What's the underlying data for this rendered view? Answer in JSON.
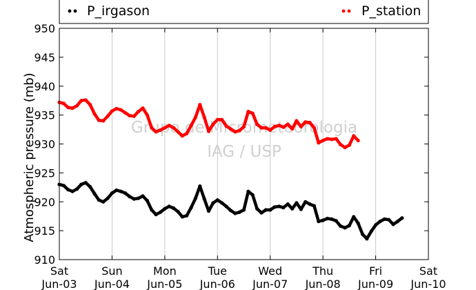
{
  "chart_data": {
    "type": "scatter",
    "ylabel": "Atmospheric pressure (mb)",
    "ylim": [
      910,
      950
    ],
    "yticks": [
      910,
      915,
      920,
      925,
      930,
      935,
      940,
      945,
      950
    ],
    "xlim": [
      "2013-06-03T00:00",
      "2013-06-10T00:00"
    ],
    "xticks": [
      {
        "date": "2013-06-03T00:00",
        "label1": "Sat",
        "label2": "Jun-03"
      },
      {
        "date": "2013-06-04T00:00",
        "label1": "Sun",
        "label2": "Jun-04"
      },
      {
        "date": "2013-06-05T00:00",
        "label1": "Mon",
        "label2": "Jun-05"
      },
      {
        "date": "2013-06-06T00:00",
        "label1": "Tue",
        "label2": "Jun-06"
      },
      {
        "date": "2013-06-07T00:00",
        "label1": "Wed",
        "label2": "Jun-07"
      },
      {
        "date": "2013-06-08T00:00",
        "label1": "Thu",
        "label2": "Jun-08"
      },
      {
        "date": "2013-06-09T00:00",
        "label1": "Fri",
        "label2": "Jun-09"
      },
      {
        "date": "2013-06-10T00:00",
        "label1": "Sat",
        "label2": "Jun-10"
      }
    ],
    "grid": "vertical",
    "legend": "top",
    "watermark": [
      "Grupo de Micrometeorologia",
      "IAG / USP"
    ],
    "series": [
      {
        "name": "P_irgason",
        "color": "#000000",
        "points": [
          [
            "2013-06-03T00:00",
            923.0
          ],
          [
            "2013-06-03T02:00",
            922.8
          ],
          [
            "2013-06-03T04:00",
            922.1
          ],
          [
            "2013-06-03T06:00",
            921.8
          ],
          [
            "2013-06-03T08:00",
            922.2
          ],
          [
            "2013-06-03T10:00",
            923.0
          ],
          [
            "2013-06-03T12:00",
            923.3
          ],
          [
            "2013-06-03T14:00",
            922.6
          ],
          [
            "2013-06-03T16:00",
            921.4
          ],
          [
            "2013-06-03T18:00",
            920.3
          ],
          [
            "2013-06-03T20:00",
            920.0
          ],
          [
            "2013-06-03T22:00",
            920.6
          ],
          [
            "2013-06-04T00:00",
            921.5
          ],
          [
            "2013-06-04T02:00",
            922.0
          ],
          [
            "2013-06-04T04:00",
            921.8
          ],
          [
            "2013-06-04T06:00",
            921.5
          ],
          [
            "2013-06-04T08:00",
            920.9
          ],
          [
            "2013-06-04T10:00",
            920.5
          ],
          [
            "2013-06-04T12:00",
            920.6
          ],
          [
            "2013-06-04T14:00",
            921.0
          ],
          [
            "2013-06-04T16:00",
            920.2
          ],
          [
            "2013-06-04T18:00",
            918.6
          ],
          [
            "2013-06-04T20:00",
            917.8
          ],
          [
            "2013-06-04T22:00",
            918.2
          ],
          [
            "2013-06-05T00:00",
            918.8
          ],
          [
            "2013-06-05T02:00",
            919.2
          ],
          [
            "2013-06-05T04:00",
            918.9
          ],
          [
            "2013-06-05T06:00",
            918.3
          ],
          [
            "2013-06-05T08:00",
            917.4
          ],
          [
            "2013-06-05T10:00",
            917.6
          ],
          [
            "2013-06-05T12:00",
            919.0
          ],
          [
            "2013-06-05T14:00",
            920.6
          ],
          [
            "2013-06-05T16:00",
            922.7
          ],
          [
            "2013-06-05T18:00",
            920.5
          ],
          [
            "2013-06-05T20:00",
            918.4
          ],
          [
            "2013-06-05T22:00",
            919.8
          ],
          [
            "2013-06-06T00:00",
            920.3
          ],
          [
            "2013-06-06T02:00",
            919.8
          ],
          [
            "2013-06-06T04:00",
            919.2
          ],
          [
            "2013-06-06T06:00",
            918.5
          ],
          [
            "2013-06-06T08:00",
            918.0
          ],
          [
            "2013-06-06T10:00",
            918.2
          ],
          [
            "2013-06-06T12:00",
            918.6
          ],
          [
            "2013-06-06T14:00",
            921.8
          ],
          [
            "2013-06-06T16:00",
            921.2
          ],
          [
            "2013-06-06T18:00",
            918.8
          ],
          [
            "2013-06-06T20:00",
            918.1
          ],
          [
            "2013-06-06T22:00",
            918.6
          ],
          [
            "2013-06-07T00:00",
            918.6
          ],
          [
            "2013-06-07T02:00",
            919.1
          ],
          [
            "2013-06-07T04:00",
            919.2
          ],
          [
            "2013-06-07T06:00",
            919.0
          ],
          [
            "2013-06-07T08:00",
            919.6
          ],
          [
            "2013-06-07T10:00",
            918.8
          ],
          [
            "2013-06-07T12:00",
            919.8
          ],
          [
            "2013-06-07T14:00",
            918.7
          ],
          [
            "2013-06-07T16:00",
            920.0
          ],
          [
            "2013-06-07T18:00",
            919.6
          ],
          [
            "2013-06-07T20:00",
            919.3
          ],
          [
            "2013-06-07T22:00",
            916.6
          ],
          [
            "2013-06-08T00:00",
            916.8
          ],
          [
            "2013-06-08T02:00",
            917.1
          ],
          [
            "2013-06-08T04:00",
            917.0
          ],
          [
            "2013-06-08T06:00",
            916.7
          ],
          [
            "2013-06-08T08:00",
            915.8
          ],
          [
            "2013-06-08T10:00",
            915.5
          ],
          [
            "2013-06-08T12:00",
            915.9
          ],
          [
            "2013-06-08T14:00",
            917.4
          ],
          [
            "2013-06-08T16:00",
            916.3
          ],
          [
            "2013-06-08T18:00",
            914.4
          ],
          [
            "2013-06-08T20:00",
            913.6
          ],
          [
            "2013-06-08T22:00",
            914.9
          ],
          [
            "2013-06-09T00:00",
            916.0
          ],
          [
            "2013-06-09T02:00",
            916.6
          ],
          [
            "2013-06-09T04:00",
            917.0
          ],
          [
            "2013-06-09T06:00",
            916.9
          ],
          [
            "2013-06-09T08:00",
            916.1
          ],
          [
            "2013-06-09T10:00",
            916.6
          ],
          [
            "2013-06-09T12:00",
            917.2
          ]
        ]
      },
      {
        "name": "P_station",
        "color": "#ff0000",
        "points": [
          [
            "2013-06-03T00:00",
            937.2
          ],
          [
            "2013-06-03T02:00",
            937.0
          ],
          [
            "2013-06-03T04:00",
            936.3
          ],
          [
            "2013-06-03T06:00",
            936.2
          ],
          [
            "2013-06-03T08:00",
            936.6
          ],
          [
            "2013-06-03T10:00",
            937.5
          ],
          [
            "2013-06-03T12:00",
            937.6
          ],
          [
            "2013-06-03T14:00",
            936.8
          ],
          [
            "2013-06-03T16:00",
            935.2
          ],
          [
            "2013-06-03T18:00",
            934.1
          ],
          [
            "2013-06-03T20:00",
            934.0
          ],
          [
            "2013-06-03T22:00",
            934.8
          ],
          [
            "2013-06-04T00:00",
            935.7
          ],
          [
            "2013-06-04T02:00",
            936.1
          ],
          [
            "2013-06-04T04:00",
            935.9
          ],
          [
            "2013-06-04T06:00",
            935.4
          ],
          [
            "2013-06-04T08:00",
            934.9
          ],
          [
            "2013-06-04T10:00",
            934.8
          ],
          [
            "2013-06-04T12:00",
            935.6
          ],
          [
            "2013-06-04T14:00",
            936.2
          ],
          [
            "2013-06-04T16:00",
            935.0
          ],
          [
            "2013-06-04T18:00",
            932.8
          ],
          [
            "2013-06-04T20:00",
            932.1
          ],
          [
            "2013-06-04T22:00",
            932.4
          ],
          [
            "2013-06-05T00:00",
            932.8
          ],
          [
            "2013-06-05T02:00",
            933.2
          ],
          [
            "2013-06-05T04:00",
            932.8
          ],
          [
            "2013-06-05T06:00",
            932.1
          ],
          [
            "2013-06-05T08:00",
            931.4
          ],
          [
            "2013-06-05T10:00",
            931.8
          ],
          [
            "2013-06-05T12:00",
            933.2
          ],
          [
            "2013-06-05T14:00",
            934.6
          ],
          [
            "2013-06-05T16:00",
            936.8
          ],
          [
            "2013-06-05T18:00",
            934.6
          ],
          [
            "2013-06-05T20:00",
            932.2
          ],
          [
            "2013-06-05T22:00",
            933.4
          ],
          [
            "2013-06-06T00:00",
            934.2
          ],
          [
            "2013-06-06T02:00",
            934.2
          ],
          [
            "2013-06-06T04:00",
            933.1
          ],
          [
            "2013-06-06T06:00",
            932.6
          ],
          [
            "2013-06-06T08:00",
            932.1
          ],
          [
            "2013-06-06T10:00",
            932.3
          ],
          [
            "2013-06-06T12:00",
            933.0
          ],
          [
            "2013-06-06T14:00",
            935.6
          ],
          [
            "2013-06-06T16:00",
            935.3
          ],
          [
            "2013-06-06T18:00",
            933.4
          ],
          [
            "2013-06-06T20:00",
            932.8
          ],
          [
            "2013-06-06T22:00",
            932.8
          ],
          [
            "2013-06-07T00:00",
            932.4
          ],
          [
            "2013-06-07T02:00",
            933.0
          ],
          [
            "2013-06-07T04:00",
            933.2
          ],
          [
            "2013-06-07T06:00",
            932.9
          ],
          [
            "2013-06-07T08:00",
            933.4
          ],
          [
            "2013-06-07T10:00",
            932.6
          ],
          [
            "2013-06-07T12:00",
            934.0
          ],
          [
            "2013-06-07T14:00",
            933.0
          ],
          [
            "2013-06-07T16:00",
            933.8
          ],
          [
            "2013-06-07T18:00",
            933.7
          ],
          [
            "2013-06-07T20:00",
            932.8
          ],
          [
            "2013-06-07T22:00",
            930.2
          ],
          [
            "2013-06-08T00:00",
            930.6
          ],
          [
            "2013-06-08T02:00",
            930.9
          ],
          [
            "2013-06-08T04:00",
            930.8
          ],
          [
            "2013-06-08T06:00",
            930.9
          ],
          [
            "2013-06-08T08:00",
            929.9
          ],
          [
            "2013-06-08T10:00",
            929.4
          ],
          [
            "2013-06-08T12:00",
            929.8
          ],
          [
            "2013-06-08T14:00",
            931.4
          ],
          [
            "2013-06-08T16:00",
            930.6
          ]
        ]
      }
    ]
  }
}
